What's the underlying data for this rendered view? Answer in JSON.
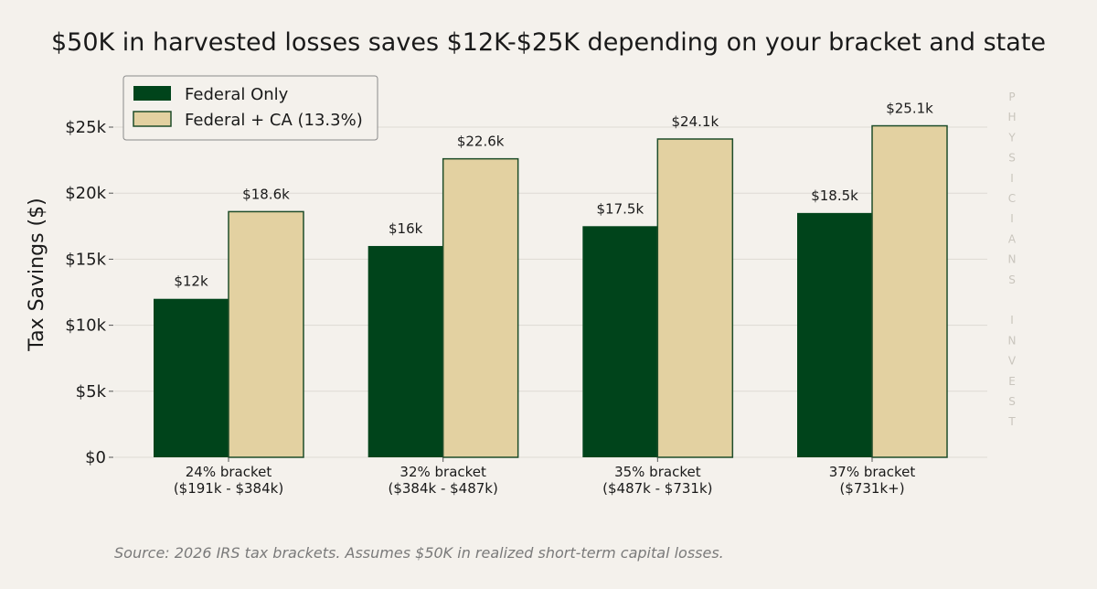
{
  "chart_data": {
    "type": "bar",
    "title": "$50K in harvested losses saves $12K-$25K depending on your bracket and state",
    "ylabel": "Tax Savings ($)",
    "xlabel": "",
    "ylim": [
      0,
      28000
    ],
    "yticks": [
      0,
      5000,
      10000,
      15000,
      20000,
      25000
    ],
    "ytick_labels": [
      "$0",
      "$5k",
      "$10k",
      "$15k",
      "$20k",
      "$25k"
    ],
    "categories": [
      [
        "24% bracket",
        "($191k - $384k)"
      ],
      [
        "32% bracket",
        "($384k - $487k)"
      ],
      [
        "35% bracket",
        "($487k - $731k)"
      ],
      [
        "37% bracket",
        "($731k+)"
      ]
    ],
    "series": [
      {
        "name": "Federal Only",
        "color": "#00441b",
        "values": [
          12000,
          16000,
          17500,
          18500
        ],
        "labels": [
          "$12k",
          "$16k",
          "$17.5k",
          "$18.5k"
        ]
      },
      {
        "name": "Federal + CA (13.3%)",
        "color": "#e3d1a1",
        "edge_color": "#1f4d2a",
        "values": [
          18600,
          22600,
          24100,
          25100
        ],
        "labels": [
          "$18.6k",
          "$22.6k",
          "$24.1k",
          "$25.1k"
        ]
      }
    ],
    "grid": true,
    "legend_position": "top-left"
  },
  "watermark": [
    "P",
    "H",
    "Y",
    "S",
    "I",
    "C",
    "I",
    "A",
    "N",
    "S",
    "",
    "I",
    "N",
    "V",
    "E",
    "S",
    "T"
  ],
  "source": "Source: 2026 IRS tax brackets. Assumes $50K in realized short-term capital losses."
}
